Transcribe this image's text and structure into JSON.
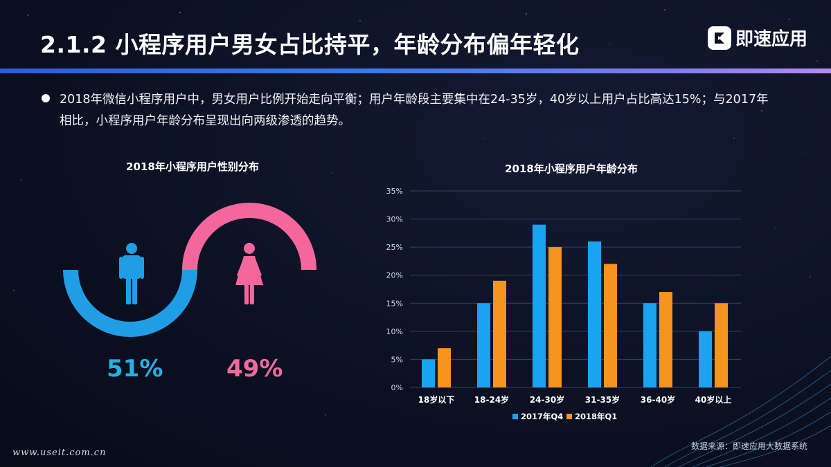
{
  "page": {
    "title": "2.1.2  小程序用户男女占比持平，年龄分布偏年轻化",
    "logo_text": "即速应用",
    "description": "2018年微信小程序用户中，男女用户比例开始走向平衡；用户年龄段主要集中在24-35岁，40岁以上用户占比高达15%；与2017年相比，小程序用户年龄分布呈现出向两级渗透的趋势。",
    "source": "数据来源：即速应用大数据系统",
    "watermark": "www.useit.com.cn"
  },
  "colors": {
    "male": "#1f9ee6",
    "female": "#f4679d",
    "series_2017": "#1aa3f0",
    "series_2018": "#f7941d",
    "male_text": "#25b0e4",
    "female_text": "#f06a9c"
  },
  "chart_data": [
    {
      "type": "pie",
      "title": "2018年小程序用户性别分布",
      "categories": [
        "男",
        "女"
      ],
      "values": [
        51,
        49
      ],
      "labels": [
        "51%",
        "49%"
      ],
      "icons": [
        "male-person-icon",
        "female-person-icon"
      ]
    },
    {
      "type": "bar",
      "title": "2018年小程序用户年龄分布",
      "categories": [
        "18岁以下",
        "18-24岁",
        "24-30岁",
        "31-35岁",
        "36-40岁",
        "40岁以上"
      ],
      "series": [
        {
          "name": "2017年Q4",
          "values": [
            5,
            15,
            29,
            26,
            15,
            10
          ]
        },
        {
          "name": "2018年Q1",
          "values": [
            7,
            19,
            25,
            22,
            17,
            15
          ]
        }
      ],
      "yticks": [
        "0%",
        "5%",
        "10%",
        "15%",
        "20%",
        "25%",
        "30%",
        "35%"
      ],
      "ylim": [
        0,
        35
      ],
      "grid": true,
      "legend": "bottom"
    }
  ]
}
